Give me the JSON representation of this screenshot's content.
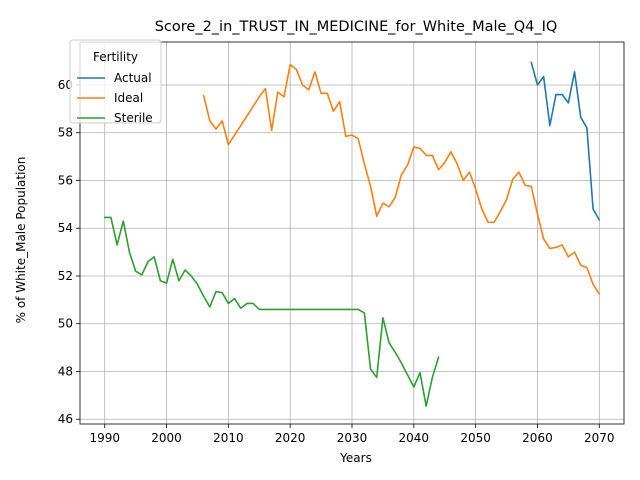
{
  "chart_data": {
    "type": "line",
    "title": "Score_2_in_TRUST_IN_MEDICINE_for_White_Male_Q4_IQ",
    "xlabel": "Years",
    "ylabel": "% of White_Male Population",
    "xlim": [
      1986,
      2074
    ],
    "ylim": [
      45.8,
      61.8
    ],
    "x_ticks": [
      1990,
      2000,
      2010,
      2020,
      2030,
      2040,
      2050,
      2060,
      2070
    ],
    "y_ticks": [
      46,
      48,
      50,
      52,
      54,
      56,
      58,
      60
    ],
    "grid": true,
    "legend": {
      "title": "Fertility",
      "position": "top-left"
    },
    "series": [
      {
        "name": "Actual",
        "color": "#1f77b4",
        "points": [
          [
            2059,
            60.95
          ],
          [
            2060,
            60.0
          ],
          [
            2061,
            60.35
          ],
          [
            2062,
            58.3
          ],
          [
            2063,
            59.6
          ],
          [
            2064,
            59.6
          ],
          [
            2065,
            59.25
          ],
          [
            2066,
            60.55
          ],
          [
            2067,
            58.65
          ],
          [
            2068,
            58.2
          ],
          [
            2069,
            54.8
          ],
          [
            2070,
            54.35
          ]
        ]
      },
      {
        "name": "Ideal",
        "color": "#ff7f0e",
        "points": [
          [
            2006,
            59.55
          ],
          [
            2007,
            58.5
          ],
          [
            2008,
            58.15
          ],
          [
            2009,
            58.5
          ],
          [
            2010,
            57.5
          ],
          [
            2011,
            57.9
          ],
          [
            2012,
            58.3
          ],
          [
            2013,
            58.7
          ],
          [
            2014,
            59.1
          ],
          [
            2015,
            59.5
          ],
          [
            2016,
            59.85
          ],
          [
            2017,
            58.1
          ],
          [
            2018,
            59.7
          ],
          [
            2019,
            59.5
          ],
          [
            2020,
            60.85
          ],
          [
            2021,
            60.65
          ],
          [
            2022,
            60.0
          ],
          [
            2023,
            59.8
          ],
          [
            2024,
            60.55
          ],
          [
            2025,
            59.65
          ],
          [
            2026,
            59.65
          ],
          [
            2027,
            58.9
          ],
          [
            2028,
            59.3
          ],
          [
            2029,
            57.85
          ],
          [
            2030,
            57.9
          ],
          [
            2031,
            57.75
          ],
          [
            2032,
            56.7
          ],
          [
            2033,
            55.75
          ],
          [
            2034,
            54.5
          ],
          [
            2035,
            55.05
          ],
          [
            2036,
            54.9
          ],
          [
            2037,
            55.3
          ],
          [
            2038,
            56.25
          ],
          [
            2039,
            56.65
          ],
          [
            2040,
            57.4
          ],
          [
            2041,
            57.35
          ],
          [
            2042,
            57.05
          ],
          [
            2043,
            57.05
          ],
          [
            2044,
            56.45
          ],
          [
            2045,
            56.75
          ],
          [
            2046,
            57.2
          ],
          [
            2047,
            56.7
          ],
          [
            2048,
            56.0
          ],
          [
            2049,
            56.35
          ],
          [
            2050,
            55.65
          ],
          [
            2051,
            54.8
          ],
          [
            2052,
            54.25
          ],
          [
            2053,
            54.25
          ],
          [
            2054,
            54.7
          ],
          [
            2055,
            55.2
          ],
          [
            2056,
            56.05
          ],
          [
            2057,
            56.35
          ],
          [
            2058,
            55.8
          ],
          [
            2059,
            55.75
          ],
          [
            2060,
            54.6
          ],
          [
            2061,
            53.55
          ],
          [
            2062,
            53.15
          ],
          [
            2063,
            53.2
          ],
          [
            2064,
            53.3
          ],
          [
            2065,
            52.8
          ],
          [
            2066,
            53.0
          ],
          [
            2067,
            52.45
          ],
          [
            2068,
            52.35
          ],
          [
            2069,
            51.65
          ],
          [
            2070,
            51.25
          ]
        ]
      },
      {
        "name": "Sterile",
        "color": "#2ca02c",
        "points": [
          [
            1990,
            54.45
          ],
          [
            1991,
            54.45
          ],
          [
            1992,
            53.3
          ],
          [
            1993,
            54.3
          ],
          [
            1994,
            53.0
          ],
          [
            1995,
            52.2
          ],
          [
            1996,
            52.05
          ],
          [
            1997,
            52.6
          ],
          [
            1998,
            52.8
          ],
          [
            1999,
            51.8
          ],
          [
            2000,
            51.7
          ],
          [
            2001,
            52.7
          ],
          [
            2002,
            51.8
          ],
          [
            2003,
            52.25
          ],
          [
            2004,
            52.0
          ],
          [
            2005,
            51.65
          ],
          [
            2006,
            51.15
          ],
          [
            2007,
            50.7
          ],
          [
            2008,
            51.35
          ],
          [
            2009,
            51.3
          ],
          [
            2010,
            50.85
          ],
          [
            2011,
            51.05
          ],
          [
            2012,
            50.65
          ],
          [
            2013,
            50.85
          ],
          [
            2014,
            50.85
          ],
          [
            2015,
            50.6
          ],
          [
            2016,
            50.6
          ],
          [
            2017,
            50.6
          ],
          [
            2018,
            50.6
          ],
          [
            2019,
            50.6
          ],
          [
            2020,
            50.6
          ],
          [
            2021,
            50.6
          ],
          [
            2022,
            50.6
          ],
          [
            2023,
            50.6
          ],
          [
            2024,
            50.6
          ],
          [
            2025,
            50.6
          ],
          [
            2026,
            50.6
          ],
          [
            2027,
            50.6
          ],
          [
            2028,
            50.6
          ],
          [
            2029,
            50.6
          ],
          [
            2030,
            50.6
          ],
          [
            2031,
            50.6
          ],
          [
            2032,
            50.45
          ],
          [
            2033,
            48.1
          ],
          [
            2034,
            47.75
          ],
          [
            2035,
            50.25
          ],
          [
            2036,
            49.2
          ],
          [
            2037,
            48.8
          ],
          [
            2038,
            48.35
          ],
          [
            2039,
            47.85
          ],
          [
            2040,
            47.35
          ],
          [
            2041,
            47.95
          ],
          [
            2042,
            46.55
          ],
          [
            2043,
            47.75
          ],
          [
            2044,
            48.6
          ]
        ]
      }
    ]
  }
}
